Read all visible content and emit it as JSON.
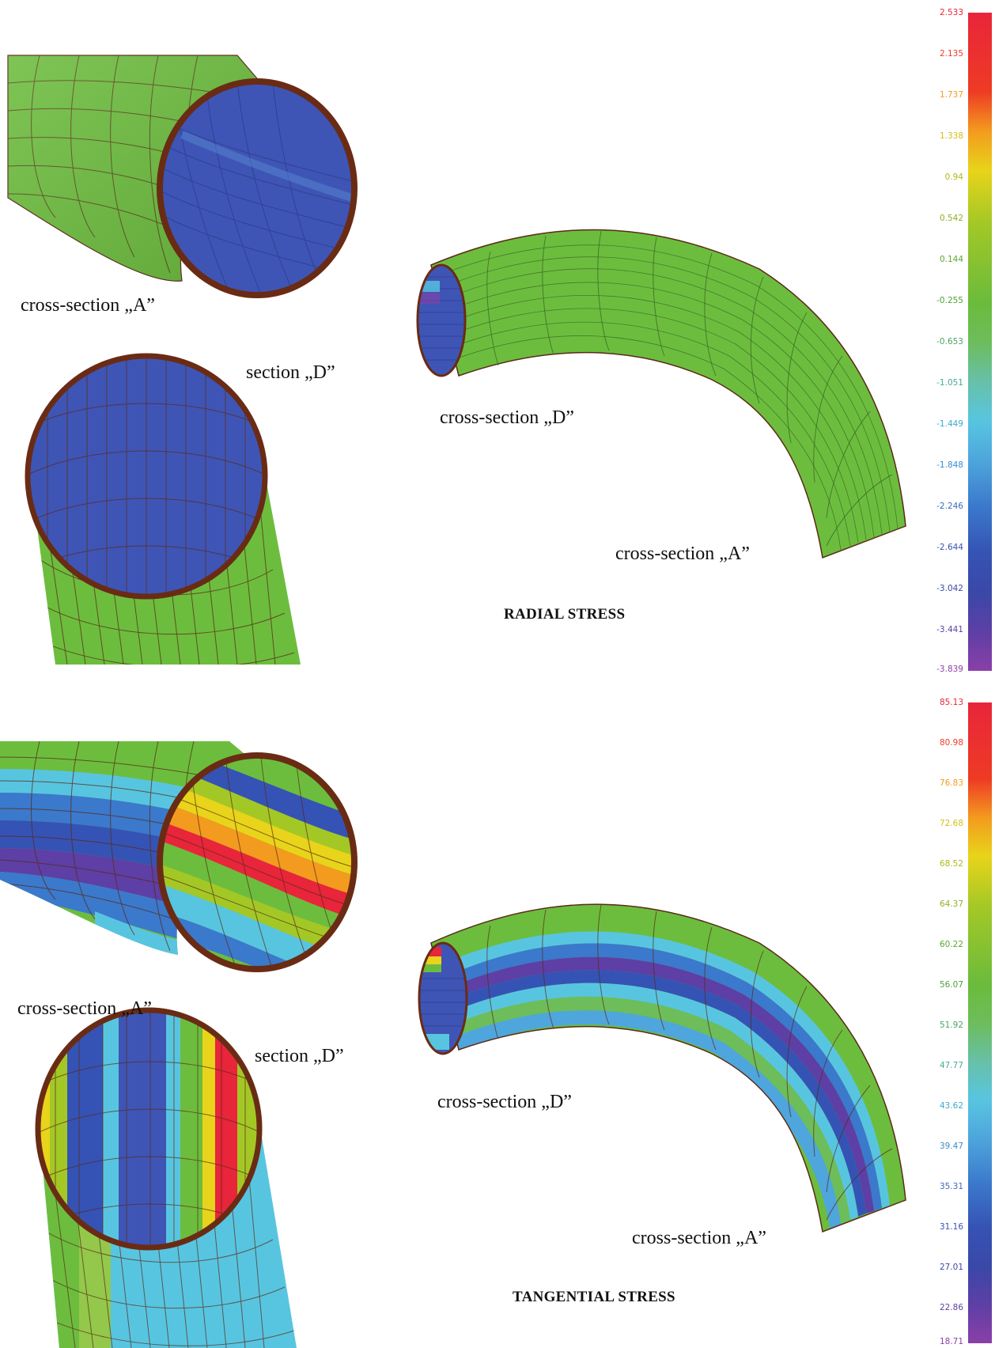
{
  "panels": {
    "radial": {
      "title": "RADIAL STRESS",
      "labels": {
        "crossA_closeup": "cross-section „A”",
        "sectionD_closeup": "section „D”",
        "crossD_pipe": "cross-section „D”",
        "crossA_pipe": "cross-section „A”"
      },
      "legend": {
        "ticks": [
          "2.533",
          "2.135",
          "1.737",
          "1.338",
          "0.94",
          "0.542",
          "0.144",
          "-0.255",
          "-0.653",
          "-1.051",
          "-1.449",
          "-1.848",
          "-2.246",
          "-2.644",
          "-3.042",
          "-3.441",
          "-3.839"
        ],
        "tick_colors": [
          "#e8253a",
          "#ee3b24",
          "#f39b1f",
          "#e8d41a",
          "#c8d21c",
          "#a3c826",
          "#7cc03a",
          "#6bbb3c",
          "#6dbd5b",
          "#67c0a8",
          "#58c5e0",
          "#4ea6dc",
          "#3b79cc",
          "#3553b4",
          "#3a48a8",
          "#5d3fa5",
          "#8b3fa8"
        ]
      }
    },
    "tangential": {
      "title": "TANGENTIAL STRESS",
      "labels": {
        "crossA_closeup": "cross-section „A”",
        "sectionD_closeup": "section „D”",
        "crossD_pipe": "cross-section „D”",
        "crossA_pipe": "cross-section „A”"
      },
      "legend": {
        "ticks": [
          "85.13",
          "80.98",
          "76.83",
          "72.68",
          "68.52",
          "64.37",
          "60.22",
          "56.07",
          "51.92",
          "47.77",
          "43.62",
          "39.47",
          "35.31",
          "31.16",
          "27.01",
          "22.86",
          "18.71"
        ],
        "tick_colors": [
          "#e8253a",
          "#ee3b24",
          "#f39b1f",
          "#e8d41a",
          "#c8d21c",
          "#a3c826",
          "#7cc03a",
          "#6bbb3c",
          "#6dbd5b",
          "#67c0a8",
          "#58c5e0",
          "#4ea6dc",
          "#3b79cc",
          "#3553b4",
          "#3a48a8",
          "#5d3fa5",
          "#8b3fa8"
        ]
      }
    }
  },
  "colors": {
    "shell_green": "#6cbd3e",
    "inner_blue": "#3e55b5",
    "rim_brown": "#6a2b14",
    "mesh_line": "#5a2a16"
  }
}
